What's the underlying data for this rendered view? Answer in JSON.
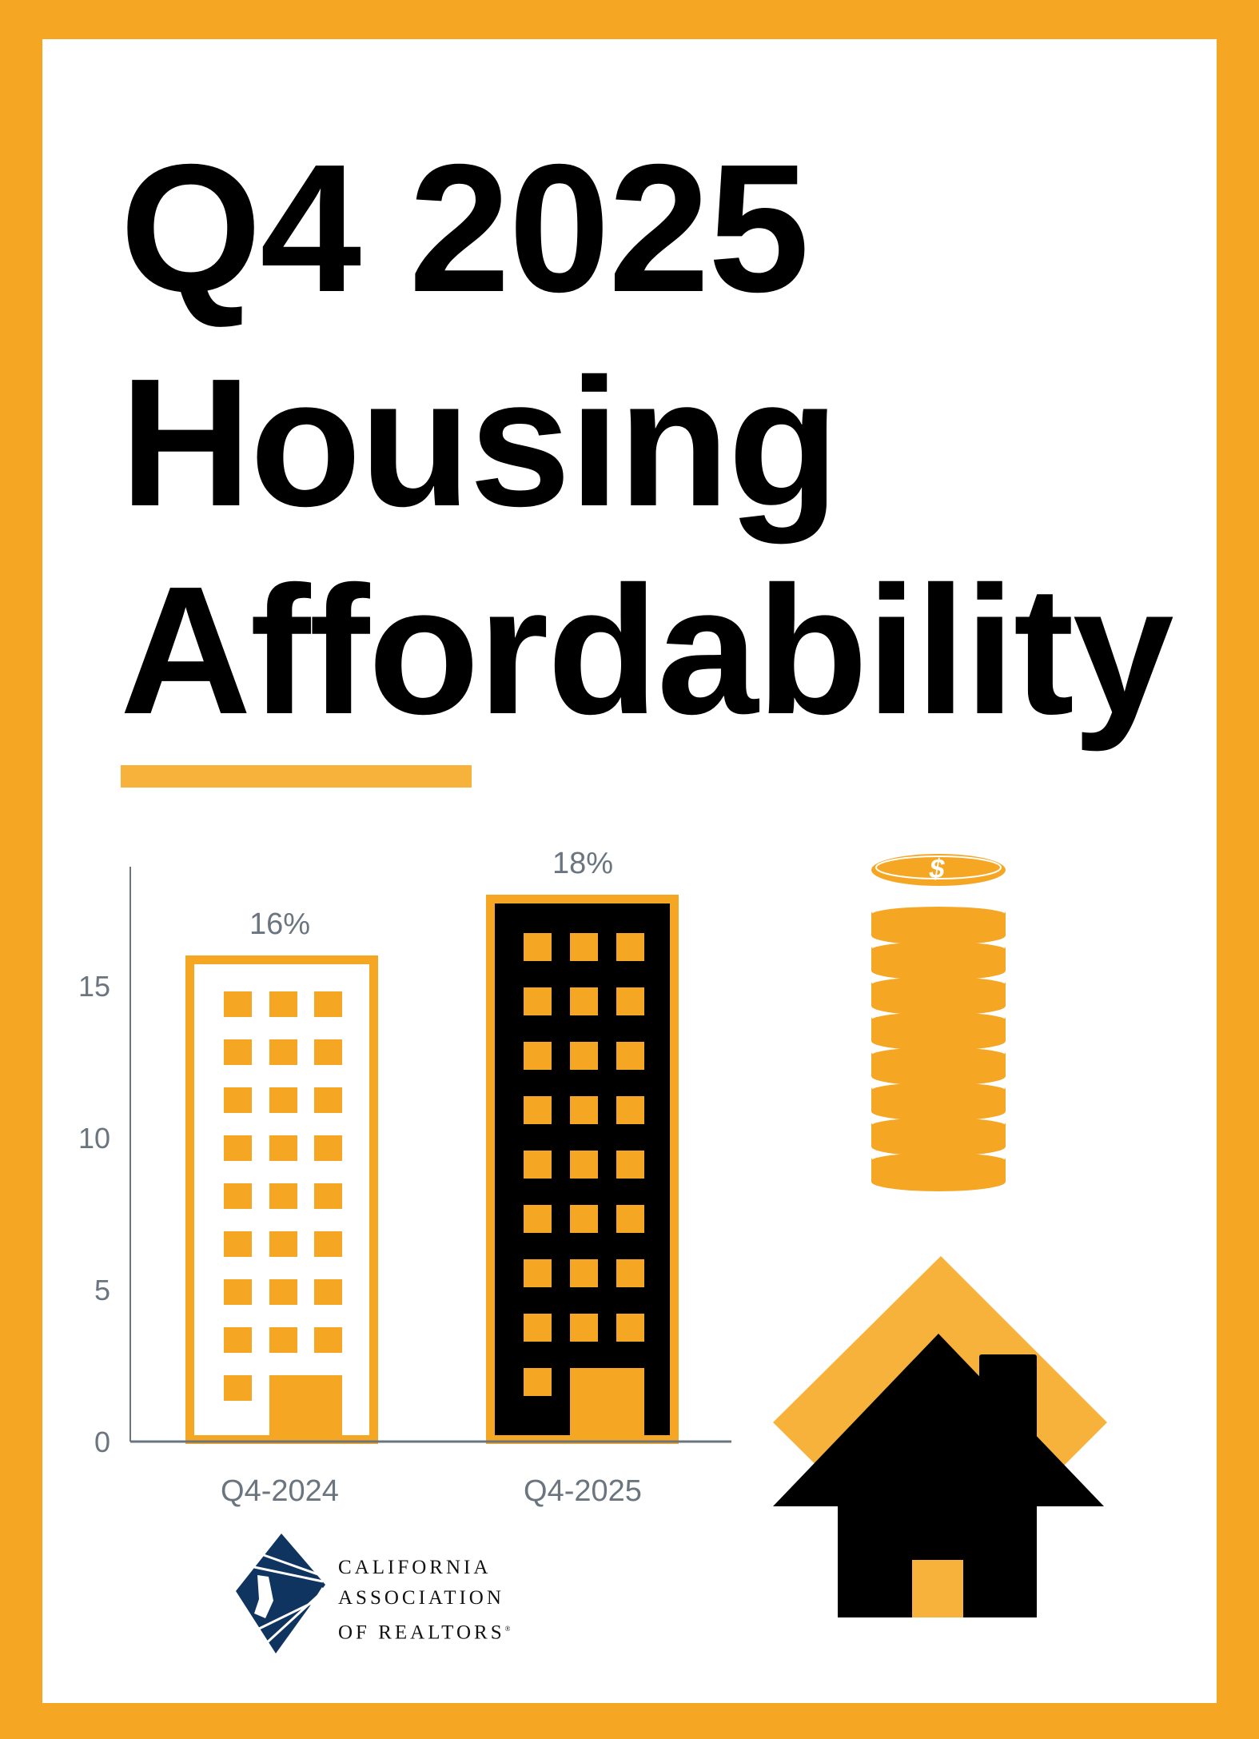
{
  "title": {
    "line1": "Q4 2025",
    "line2": "Housing",
    "line3": "Affordability"
  },
  "colors": {
    "border": "#f5a623",
    "accent": "#f5a623",
    "bar1_fill": "#ffffff",
    "bar2_fill": "#000000",
    "axis_text": "#6b7580",
    "logo_blue": "#0f3460"
  },
  "chart_data": {
    "type": "bar",
    "categories": [
      "Q4-2024",
      "Q4-2025"
    ],
    "values": [
      16,
      18
    ],
    "data_labels": [
      "16%",
      "18%"
    ],
    "yticks": [
      "0",
      "5",
      "10",
      "15"
    ],
    "ytick_values": [
      0,
      5,
      10,
      15
    ],
    "ylim": [
      0,
      19
    ],
    "title": "",
    "xlabel": "",
    "ylabel": "",
    "grid": false
  },
  "icons": {
    "coins": "coin-stack-dollar-icon",
    "house": "house-icon"
  },
  "logo": {
    "line1": "CALIFORNIA",
    "line2": "ASSOCIATION",
    "line3": "OF REALTORS",
    "mark": "®"
  }
}
